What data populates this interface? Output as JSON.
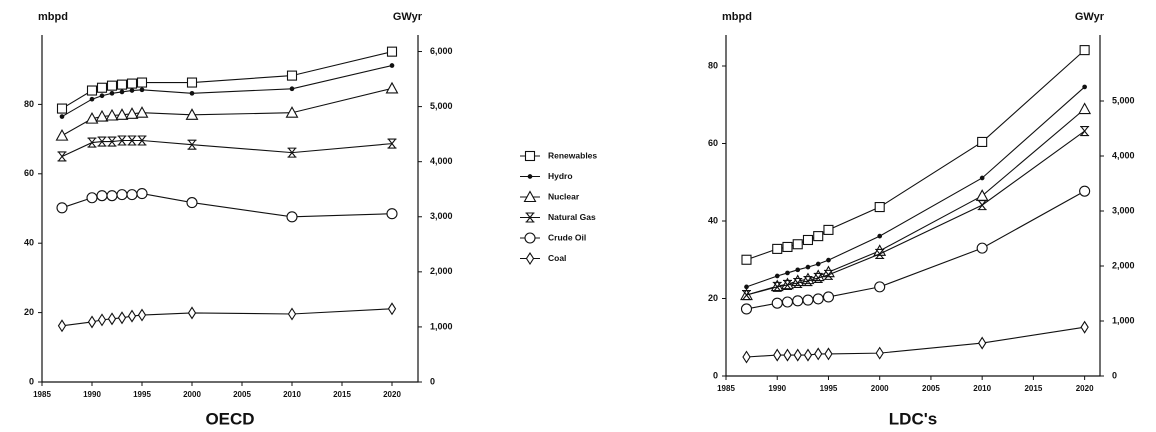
{
  "chart_data": [
    {
      "type": "line",
      "title": "OECD",
      "y_label": "mbpd",
      "y2_label": "GWyr",
      "x": [
        1987,
        1990,
        1991,
        1992,
        1993,
        1994,
        1995,
        2000,
        2010,
        2020
      ],
      "xlim": [
        1985,
        2022.6
      ],
      "xticks": [
        1985,
        1990,
        1995,
        2000,
        2005,
        2010,
        2015,
        2020
      ],
      "ylim": [
        0,
        100
      ],
      "yticks": [
        0,
        20,
        40,
        60,
        80
      ],
      "y2lim": [
        0,
        6300
      ],
      "y2ticks": [
        0,
        {
          "value": 1000,
          "label": "1,000"
        },
        {
          "value": 2000,
          "label": "2,000"
        },
        {
          "value": 3000,
          "label": "3,000"
        },
        {
          "value": 4000,
          "label": "4,000"
        },
        {
          "value": 5000,
          "label": "5,000"
        },
        {
          "value": 6000,
          "label": "6,000"
        }
      ],
      "grid": false,
      "series": [
        {
          "name": "Renewables",
          "color": "#111111",
          "marker": "square",
          "values": [
            78.8,
            84,
            84.8,
            85.4,
            85.7,
            86,
            86.3,
            86.3,
            88.3,
            95.2
          ]
        },
        {
          "name": "Hydro",
          "color": "#111111",
          "marker": "dot",
          "values": [
            76.5,
            81.5,
            82.5,
            83.2,
            83.6,
            84,
            84.2,
            83.2,
            84.5,
            91.2
          ]
        },
        {
          "name": "Nuclear",
          "color": "#111111",
          "marker": "triangle",
          "values": [
            71,
            75.9,
            76.5,
            76.8,
            77,
            77.3,
            77.6,
            77,
            77.6,
            84.6
          ]
        },
        {
          "name": "Natural Gas",
          "color": "#111111",
          "marker": "hourglass",
          "values": [
            65,
            69,
            69.3,
            69.3,
            69.6,
            69.6,
            69.6,
            68.4,
            66.1,
            68.7
          ]
        },
        {
          "name": "Crude Oil",
          "color": "#111111",
          "marker": "circle",
          "values": [
            50.2,
            53.1,
            53.7,
            53.7,
            54,
            54,
            54.3,
            51.7,
            47.6,
            48.5
          ]
        },
        {
          "name": "Coal",
          "color": "#111111",
          "marker": "diamond",
          "values": [
            16.2,
            17.3,
            17.9,
            18.2,
            18.5,
            19,
            19.3,
            19.9,
            19.6,
            21.1
          ]
        }
      ]
    },
    {
      "type": "line",
      "title": "LDC's",
      "y_label": "mbpd",
      "y2_label": "GWyr",
      "x": [
        1987,
        1990,
        1991,
        1992,
        1993,
        1994,
        1995,
        2000,
        2010,
        2020
      ],
      "xlim": [
        1985,
        2021.5
      ],
      "xticks": [
        1985,
        1990,
        1995,
        2000,
        2005,
        2010,
        2015,
        2020
      ],
      "ylim": [
        0,
        88
      ],
      "yticks": [
        0,
        20,
        40,
        60,
        80
      ],
      "y2lim": [
        0,
        6200
      ],
      "y2ticks": [
        0,
        {
          "value": 1000,
          "label": "1,000"
        },
        {
          "value": 2000,
          "label": "2,000"
        },
        {
          "value": 3000,
          "label": "3,000"
        },
        {
          "value": 4000,
          "label": "4,000"
        },
        {
          "value": 5000,
          "label": "5,000"
        }
      ],
      "grid": false,
      "series": [
        {
          "color": "#111111",
          "marker": "square",
          "values": [
            30,
            32.8,
            33.3,
            34,
            35.1,
            36.1,
            37.7,
            43.6,
            60.4,
            84.1
          ]
        },
        {
          "color": "#111111",
          "marker": "dot",
          "values": [
            23,
            25.8,
            26.6,
            27.4,
            28.1,
            28.9,
            29.9,
            36.1,
            51.1,
            74.6
          ]
        },
        {
          "color": "#111111",
          "marker": "triangle",
          "values": [
            20.9,
            23.2,
            23.7,
            24.5,
            25,
            25.8,
            26.8,
            32.3,
            46.5,
            68.9
          ]
        },
        {
          "color": "#111111",
          "marker": "hourglass",
          "values": [
            20.9,
            23,
            23.5,
            24,
            24.5,
            25.3,
            26.1,
            31.5,
            44.1,
            63.2
          ]
        },
        {
          "color": "#111111",
          "marker": "circle",
          "values": [
            17.3,
            18.8,
            19.1,
            19.4,
            19.6,
            19.9,
            20.4,
            23,
            33,
            47.7
          ]
        },
        {
          "color": "#111111",
          "marker": "diamond",
          "values": [
            4.9,
            5.4,
            5.4,
            5.4,
            5.4,
            5.7,
            5.7,
            5.9,
            8.5,
            12.6
          ]
        }
      ]
    }
  ]
}
